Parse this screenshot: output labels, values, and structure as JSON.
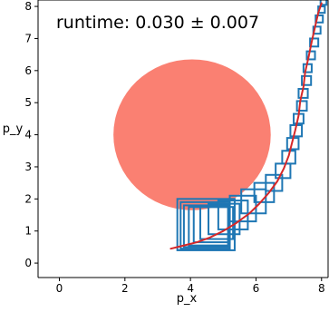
{
  "chart_data": {
    "type": "scatter",
    "title": "",
    "xlabel": "p_x",
    "ylabel": "p_y",
    "annotation": "runtime: 0.030 ± 0.007",
    "xlim": [
      -0.65,
      8.2
    ],
    "ylim": [
      -0.45,
      8.2
    ],
    "x_ticks": [
      0,
      2,
      4,
      6,
      8
    ],
    "y_ticks": [
      0,
      1,
      2,
      3,
      4,
      5,
      6,
      7,
      8
    ],
    "grid": false,
    "obstacle": {
      "shape": "ellipse",
      "center": [
        4.05,
        4.0
      ],
      "radius_x": 2.4,
      "radius_y": 2.35,
      "color": "#fa8072"
    },
    "trajectory": {
      "color": "#d62728",
      "points": [
        [
          3.4,
          0.45
        ],
        [
          3.8,
          0.55
        ],
        [
          4.2,
          0.65
        ],
        [
          4.6,
          0.8
        ],
        [
          5.0,
          1.0
        ],
        [
          5.4,
          1.25
        ],
        [
          5.8,
          1.55
        ],
        [
          6.1,
          1.85
        ],
        [
          6.4,
          2.2
        ],
        [
          6.65,
          2.55
        ],
        [
          6.85,
          2.95
        ],
        [
          7.0,
          3.35
        ],
        [
          7.1,
          3.75
        ],
        [
          7.2,
          4.15
        ],
        [
          7.3,
          4.6
        ],
        [
          7.35,
          5.05
        ],
        [
          7.45,
          5.5
        ],
        [
          7.5,
          5.95
        ],
        [
          7.6,
          6.4
        ],
        [
          7.7,
          6.9
        ],
        [
          7.8,
          7.35
        ],
        [
          7.9,
          7.8
        ],
        [
          8.0,
          8.1
        ]
      ]
    },
    "boxes": {
      "color": "#1f77b4",
      "items": [
        [
          3.6,
          0.4,
          1.75,
          1.6
        ],
        [
          3.7,
          0.45,
          1.5,
          1.45
        ],
        [
          3.8,
          0.5,
          1.35,
          1.3
        ],
        [
          3.95,
          0.55,
          1.2,
          1.2
        ],
        [
          4.1,
          0.65,
          1.1,
          1.1
        ],
        [
          4.3,
          0.75,
          1.0,
          1.0
        ],
        [
          4.55,
          0.9,
          0.95,
          0.95
        ],
        [
          4.85,
          1.05,
          0.9,
          0.9
        ],
        [
          5.2,
          1.3,
          0.8,
          0.8
        ],
        [
          5.55,
          1.55,
          0.75,
          0.75
        ],
        [
          5.95,
          1.9,
          0.6,
          0.6
        ],
        [
          6.3,
          2.25,
          0.5,
          0.5
        ],
        [
          6.6,
          2.65,
          0.45,
          0.45
        ],
        [
          6.8,
          3.1,
          0.4,
          0.4
        ],
        [
          6.95,
          3.55,
          0.35,
          0.35
        ],
        [
          7.05,
          3.95,
          0.35,
          0.35
        ],
        [
          7.15,
          4.35,
          0.3,
          0.3
        ],
        [
          7.25,
          4.75,
          0.3,
          0.3
        ],
        [
          7.3,
          5.15,
          0.28,
          0.28
        ],
        [
          7.4,
          5.55,
          0.28,
          0.28
        ],
        [
          7.45,
          5.95,
          0.25,
          0.25
        ],
        [
          7.55,
          6.35,
          0.25,
          0.25
        ],
        [
          7.65,
          6.75,
          0.25,
          0.25
        ],
        [
          7.75,
          7.15,
          0.22,
          0.22
        ],
        [
          7.82,
          7.5,
          0.22,
          0.22
        ],
        [
          7.9,
          7.8,
          0.2,
          0.2
        ],
        [
          7.97,
          8.05,
          0.18,
          0.18
        ]
      ]
    }
  }
}
